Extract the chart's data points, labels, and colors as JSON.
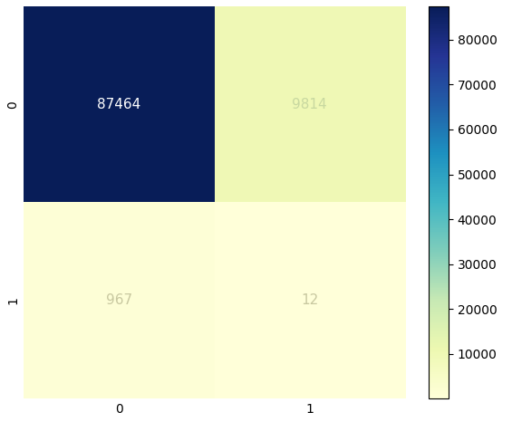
{
  "matrix": [
    [
      87464,
      9814
    ],
    [
      967,
      12
    ]
  ],
  "x_labels": [
    "0",
    "1"
  ],
  "y_labels": [
    "0",
    "1"
  ],
  "cmap": "YlGnBu",
  "cell_text_colors": [
    [
      "white",
      "#c8d8a0"
    ],
    [
      "#c8c8a0",
      "#c8c8a0"
    ]
  ],
  "cell_fontsize": 11,
  "tick_fontsize": 10,
  "colorbar_ticks": [
    10000,
    20000,
    30000,
    40000,
    50000,
    60000,
    70000,
    80000
  ],
  "vmin": 0,
  "vmax": 87464,
  "figsize": [
    5.65,
    4.66
  ],
  "dpi": 100
}
